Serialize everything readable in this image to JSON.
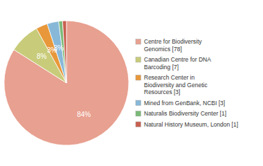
{
  "chart_data": {
    "type": "pie",
    "categories": [
      "Centre for Biodiversity\nGenomics [78]",
      "Canadian Centre for DNA\nBarcoding [7]",
      "Research Center in\nBiodiversity and Genetic\nResources [3]",
      "Mined from GenBank, NCBI [3]",
      "Naturalis Biodiversity Center [1]",
      "Natural History Museum, London [1]"
    ],
    "values": [
      84,
      8,
      3,
      3,
      1,
      1
    ],
    "value_labels": [
      "84%",
      "8%",
      "3%",
      "3%",
      null,
      null
    ],
    "data_labels": true,
    "colors": [
      "#e8a090",
      "#c8cc7a",
      "#e8983a",
      "#88b8d8",
      "#7aba78",
      "#c86050"
    ],
    "legend": "right"
  }
}
